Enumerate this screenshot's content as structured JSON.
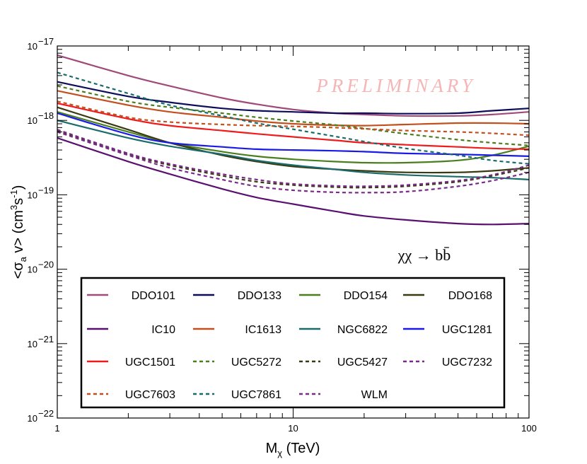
{
  "chart_data": {
    "type": "line",
    "title": "",
    "xlabel": "M_χ (TeV)",
    "ylabel": "<σ_a v> (cm^3 s^-1)",
    "xscale": "log",
    "yscale": "log",
    "xlim": [
      1,
      100
    ],
    "ylim": [
      1e-22,
      1e-17
    ],
    "x_ticks": [
      {
        "value": 1,
        "label": "1"
      },
      {
        "value": 10,
        "label": "10"
      },
      {
        "value": 100,
        "label": "100"
      }
    ],
    "y_ticks": [
      {
        "value": 1e-17,
        "base": "10",
        "exp": "−17"
      },
      {
        "value": 1e-18,
        "base": "10",
        "exp": "−18"
      },
      {
        "value": 1e-19,
        "base": "10",
        "exp": "−19"
      },
      {
        "value": 1e-20,
        "base": "10",
        "exp": "−20"
      },
      {
        "value": 1e-21,
        "base": "10",
        "exp": "−21"
      },
      {
        "value": 1e-22,
        "base": "10",
        "exp": "−22"
      }
    ],
    "x": [
      1,
      2,
      3,
      5,
      7,
      10,
      15,
      20,
      30,
      50,
      70,
      100
    ],
    "annotation_watermark": "PRELIMINARY",
    "annotation_channel": "χχ → bb̄",
    "legend_position": "bottom-center",
    "series": [
      {
        "name": "DDO101",
        "color": "#a04a78",
        "dash": "solid",
        "values": [
          7.5e-18,
          4e-18,
          2.9e-18,
          2e-18,
          1.65e-18,
          1.4e-18,
          1.25e-18,
          1.2e-18,
          1.15e-18,
          1.15e-18,
          1.2e-18,
          1.3e-18
        ]
      },
      {
        "name": "DDO133",
        "color": "#0d0d5c",
        "dash": "solid",
        "values": [
          3.3e-18,
          2.1e-18,
          1.75e-18,
          1.45e-18,
          1.35e-18,
          1.3e-18,
          1.25e-18,
          1.25e-18,
          1.23e-18,
          1.25e-18,
          1.35e-18,
          1.45e-18
        ]
      },
      {
        "name": "DDO154",
        "color": "#4b7f1e",
        "dash": "solid",
        "values": [
          1.3e-18,
          7e-19,
          5e-19,
          3.8e-19,
          3.3e-19,
          3e-19,
          2.8e-19,
          2.7e-19,
          2.7e-19,
          2.9e-19,
          3.4e-19,
          4.5e-19
        ]
      },
      {
        "name": "DDO168",
        "color": "#3a3a12",
        "dash": "solid",
        "values": [
          1.5e-18,
          7.5e-19,
          5e-19,
          3.4e-19,
          2.8e-19,
          2.4e-19,
          2.2e-19,
          2.1e-19,
          2e-19,
          2e-19,
          2.1e-19,
          2.3e-19
        ]
      },
      {
        "name": "IC10",
        "color": "#5a1070",
        "dash": "solid",
        "values": [
          5.8e-19,
          2.8e-19,
          1.9e-19,
          1.2e-19,
          9.2e-20,
          7.5e-20,
          6e-20,
          5.2e-20,
          4.6e-20,
          4.1e-20,
          4e-20,
          4.1e-20
        ]
      },
      {
        "name": "IC1613",
        "color": "#c2501e",
        "dash": "solid",
        "values": [
          2.5e-18,
          1.6e-18,
          1.3e-18,
          1.1e-18,
          9.8e-19,
          9e-19,
          8.6e-19,
          8.5e-19,
          8.8e-19,
          9.2e-19,
          9.2e-19,
          9e-19
        ]
      },
      {
        "name": "NGC6822",
        "color": "#1a6b6b",
        "dash": "solid",
        "values": [
          1e-18,
          5.8e-19,
          4.5e-19,
          3.5e-19,
          2.9e-19,
          2.5e-19,
          2.2e-19,
          2e-19,
          1.85e-19,
          1.75e-19,
          1.7e-19,
          1.6e-19
        ]
      },
      {
        "name": "UGC1281",
        "color": "#1a1ae6",
        "dash": "solid",
        "values": [
          1.25e-18,
          6.5e-19,
          5e-19,
          4.4e-19,
          4.1e-19,
          4e-19,
          3.9e-19,
          3.8e-19,
          3.6e-19,
          3.5e-19,
          3.4e-19,
          3.3e-19
        ]
      },
      {
        "name": "UGC1501",
        "color": "#ee1c1c",
        "dash": "solid",
        "values": [
          1.7e-18,
          1.05e-18,
          8.5e-19,
          7.3e-19,
          6.6e-19,
          6e-19,
          5.4e-19,
          5e-19,
          4.7e-19,
          4.4e-19,
          4.2e-19,
          4.1e-19
        ]
      },
      {
        "name": "UGC5272",
        "color": "#4b7f1e",
        "dash": "dashed",
        "values": [
          2.9e-18,
          1.8e-18,
          1.5e-18,
          1.25e-18,
          1.1e-18,
          9.8e-19,
          8.7e-19,
          7.8e-19,
          6.6e-19,
          5.5e-19,
          5e-19,
          4.6e-19
        ]
      },
      {
        "name": "UGC5427",
        "color": "#3a3a12",
        "dash": "dashed",
        "values": [
          7.2e-19,
          3.5e-19,
          2.5e-19,
          1.8e-19,
          1.5e-19,
          1.35e-19,
          1.27e-19,
          1.25e-19,
          1.3e-19,
          1.5e-19,
          1.8e-19,
          2.3e-19
        ]
      },
      {
        "name": "UGC7232",
        "color": "#7a2a8a",
        "dash": "dashed",
        "values": [
          7.5e-19,
          3.6e-19,
          2.6e-19,
          1.9e-19,
          1.6e-19,
          1.4e-19,
          1.32e-19,
          1.3e-19,
          1.35e-19,
          1.55e-19,
          1.85e-19,
          2.5e-19
        ]
      },
      {
        "name": "UGC7603",
        "color": "#c2501e",
        "dash": "dashed",
        "values": [
          1.8e-18,
          1.1e-18,
          9.5e-19,
          8.8e-19,
          8.5e-19,
          8.3e-19,
          8e-19,
          7.7e-19,
          7.3e-19,
          7e-19,
          6.7e-19,
          6.3e-19
        ]
      },
      {
        "name": "UGC7861",
        "color": "#1a6b6b",
        "dash": "dashed",
        "values": [
          4.4e-18,
          2.3e-18,
          1.6e-18,
          1.15e-18,
          9.2e-19,
          7.6e-19,
          6.1e-19,
          5.2e-19,
          4.2e-19,
          3.4e-19,
          2.9e-19,
          2.6e-19
        ]
      },
      {
        "name": "WLM",
        "color": "#7a2a8a",
        "dash": "dashed",
        "values": [
          7e-19,
          3.4e-19,
          2.3e-19,
          1.6e-19,
          1.3e-19,
          1.15e-19,
          1.08e-19,
          1.07e-19,
          1.1e-19,
          1.3e-19,
          1.55e-19,
          2e-19
        ]
      }
    ]
  }
}
